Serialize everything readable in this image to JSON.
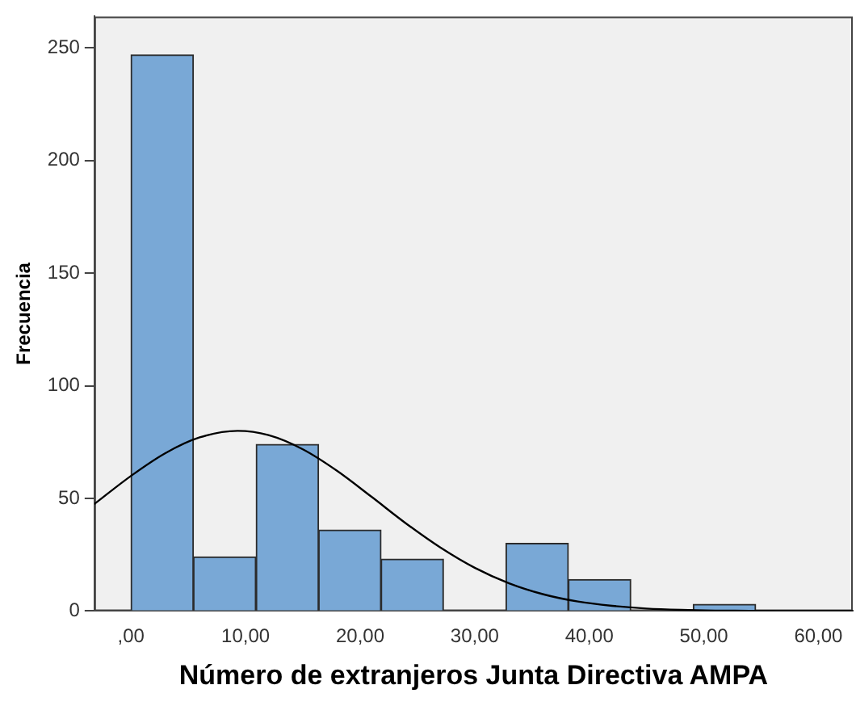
{
  "chart_data": {
    "type": "histogram",
    "xlabel": "Número de extranjeros Junta Directiva AMPA",
    "ylabel": "Frecuencia",
    "series": [
      {
        "color": "#79a8d6",
        "bins": [
          0,
          5.45,
          10.9,
          16.4,
          21.8,
          27.3,
          32.7,
          38.2,
          43.6,
          49.1,
          54.5
        ],
        "values": [
          247,
          24,
          74,
          36,
          23,
          0,
          30,
          14,
          0,
          3
        ]
      },
      {
        "type": "line",
        "color": "#000000",
        "marker": "none",
        "x": [
          -3.2,
          0,
          3,
          6,
          9.3,
          12,
          15,
          18,
          21,
          24,
          27,
          30,
          33,
          36,
          39,
          42,
          45,
          48,
          51,
          54,
          57,
          60,
          63
        ],
        "values": [
          47.5,
          60,
          70.1,
          77.1,
          80,
          78.1,
          71.8,
          62.2,
          50.7,
          38.9,
          28.2,
          19.2,
          12.3,
          7.4,
          4.2,
          2.3,
          1.1,
          0.5,
          0.2,
          0.1,
          0,
          0,
          0
        ]
      }
    ],
    "xlim": [
      -3.2,
      63
    ],
    "ylim": [
      0,
      264
    ],
    "xticks": [
      {
        "value": 0,
        "label": ",00"
      },
      {
        "value": 10,
        "label": "10,00"
      },
      {
        "value": 20,
        "label": "20,00"
      },
      {
        "value": 30,
        "label": "30,00"
      },
      {
        "value": 40,
        "label": "40,00"
      },
      {
        "value": 50,
        "label": "50,00"
      },
      {
        "value": 60,
        "label": "60,00"
      }
    ],
    "yticks": [
      0,
      50,
      100,
      150,
      200,
      250
    ],
    "grid": false,
    "legend": false
  }
}
